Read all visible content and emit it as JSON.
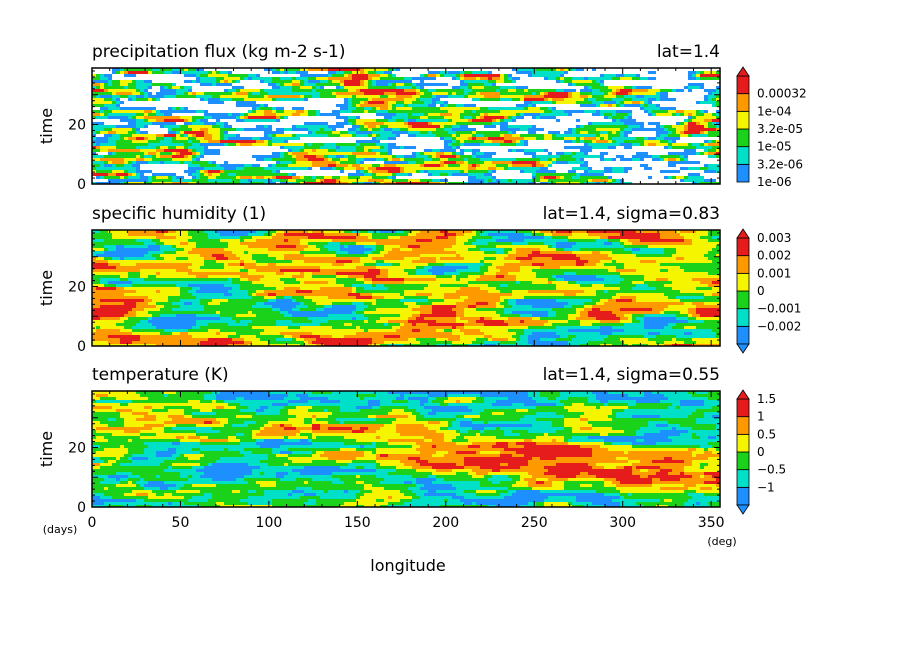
{
  "colors": {
    "palette": [
      "#1e8fff",
      "#00e0c8",
      "#19d219",
      "#f5f500",
      "#ff9900",
      "#e61c1c"
    ],
    "blank": "#ffffff"
  },
  "xaxis": {
    "label": "longitude",
    "unit": "(deg)",
    "range": [
      0,
      355
    ],
    "ticks": [
      0,
      50,
      100,
      150,
      200,
      250,
      300,
      350
    ],
    "tick_labels": [
      "0",
      "50",
      "100",
      "150",
      "200",
      "250",
      "300",
      "350"
    ]
  },
  "time_unit": "(days)",
  "chart_data": [
    {
      "type": "heatmap",
      "title": "precipitation flux (kg m-2 s-1)",
      "annotation": "lat=1.4",
      "ylabel": "time",
      "ylim": [
        0,
        39
      ],
      "yticks": [
        "0",
        "20"
      ],
      "colorbar_labels": [
        "1e-06",
        "3.2e-06",
        "1e-05",
        "3.2e-05",
        "1e-04",
        "0.00032"
      ],
      "colorbar_extend": "max",
      "pattern": "sparse",
      "has_blank_below_min": true
    },
    {
      "type": "heatmap",
      "title": "specific humidity (1)",
      "annotation": "lat=1.4, sigma=0.83",
      "ylabel": "time",
      "ylim": [
        0,
        39
      ],
      "yticks": [
        "0",
        "20"
      ],
      "colorbar_labels": [
        "−0.002",
        "−0.001",
        "0",
        "0.001",
        "0.002",
        "0.003"
      ],
      "colorbar_extend": "both",
      "pattern": "blobs"
    },
    {
      "type": "heatmap",
      "title": "temperature (K)",
      "annotation": "lat=1.4, sigma=0.55",
      "ylabel": "time",
      "ylim": [
        0,
        39
      ],
      "yticks": [
        "0",
        "20"
      ],
      "colorbar_labels": [
        "−1",
        "−0.5",
        "0",
        "0.5",
        "1",
        "1.5"
      ],
      "colorbar_extend": "both",
      "pattern": "streaks"
    }
  ]
}
